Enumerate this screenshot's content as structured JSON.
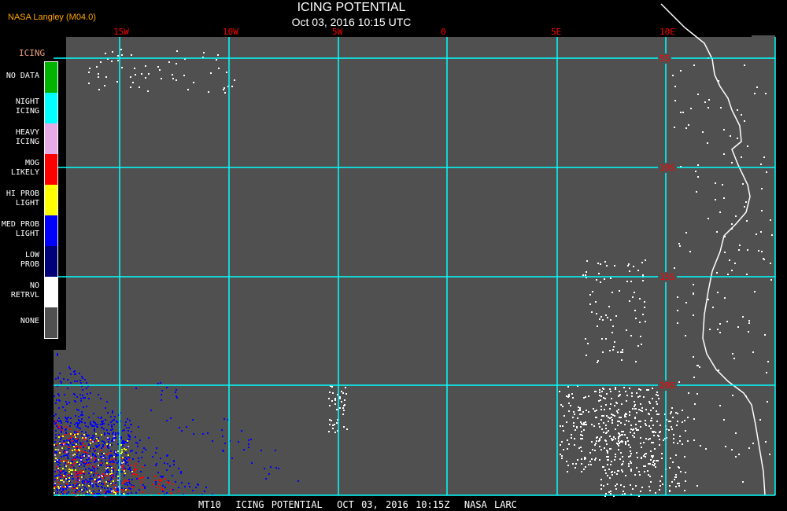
{
  "header": {
    "title": "ICING POTENTIAL",
    "subtitle": "Oct 03, 2016 10:15 UTC",
    "producer": "NASA Langley (M04.0)"
  },
  "legend": {
    "title": "ICING",
    "items": [
      {
        "label": "NO DATA",
        "color": "#00b400"
      },
      {
        "label": "NIGHT\nICING",
        "color": "#00ffff"
      },
      {
        "label": "HEAVY\nICING",
        "color": "#e6aae6"
      },
      {
        "label": "MOG\nLIKELY",
        "color": "#ff0000"
      },
      {
        "label": "HI PROB\nLIGHT",
        "color": "#ffff00"
      },
      {
        "label": "MED PROB\nLIGHT",
        "color": "#0000ff"
      },
      {
        "label": "LOW\nPROB",
        "color": "#000078"
      },
      {
        "label": "NO\nRETRVL",
        "color": "#ffffff"
      },
      {
        "label": "NONE",
        "color": "#505050"
      }
    ]
  },
  "map": {
    "longitudes": [
      "15W",
      "10W",
      "5W",
      "0",
      "5E",
      "10E"
    ],
    "latitudes": [
      "5S",
      "10S",
      "15S",
      "20S"
    ],
    "gridline_color": "#00ffff",
    "background_color": "#505050"
  },
  "footer": {
    "caption": "MT10  ICING POTENTIAL  OCT 03, 2016 10:15Z  NASA LARC"
  }
}
